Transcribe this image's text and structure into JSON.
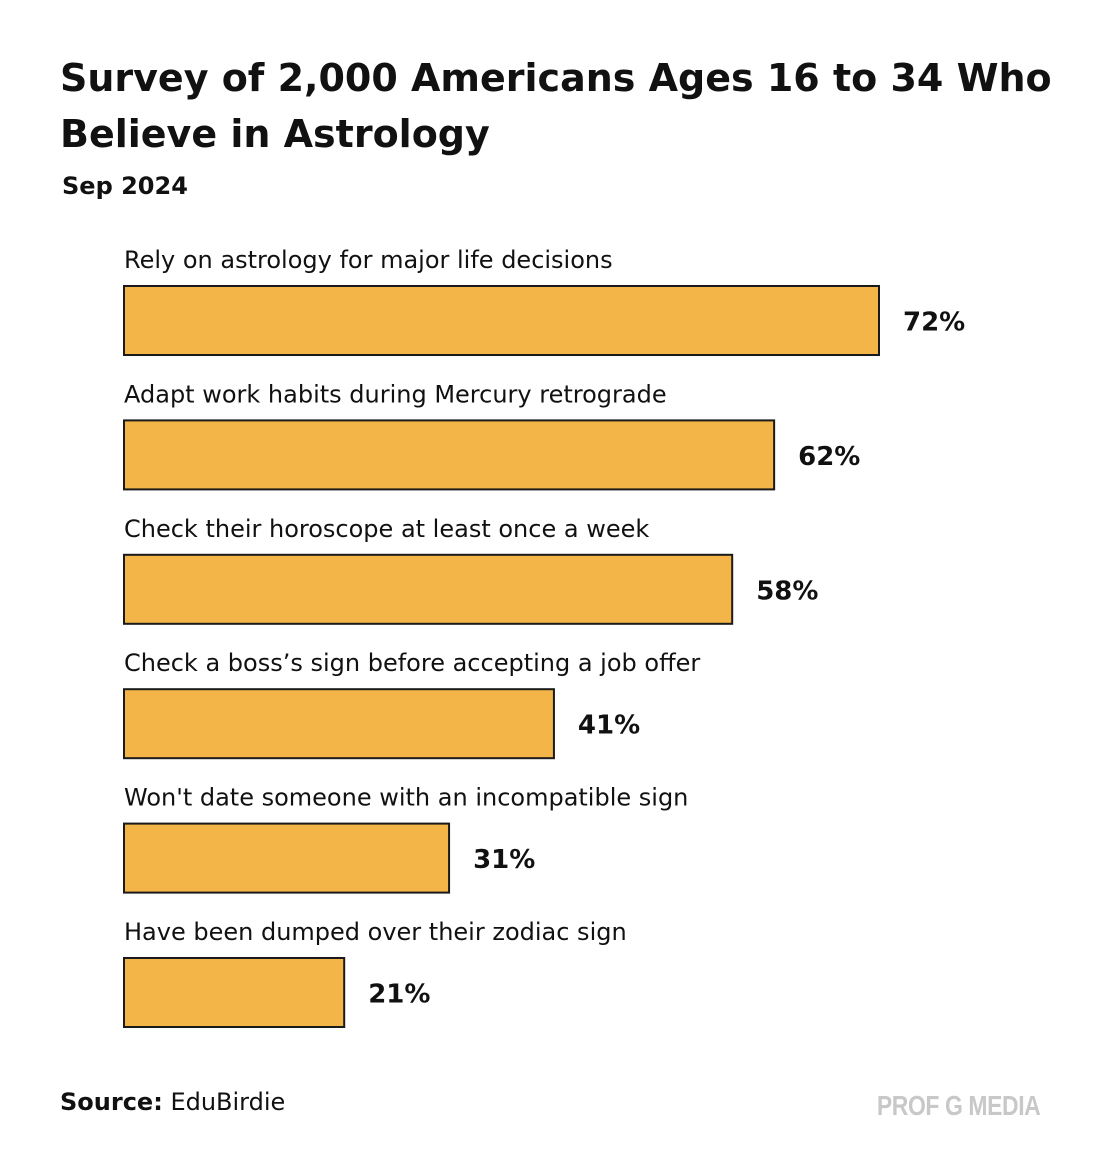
{
  "header": {
    "title": "Survey of 2,000 Americans Ages 16 to 34 Who Believe in Astrology",
    "subtitle": "Sep 2024"
  },
  "footer": {
    "source_label": "Source:",
    "source_value": "EduBirdie",
    "brand": "PROF G MEDIA"
  },
  "colors": {
    "bar_fill": "#F3B547",
    "bar_stroke": "#1a1a1a"
  },
  "chart_data": {
    "type": "bar",
    "orientation": "horizontal",
    "title": "Survey of 2,000 Americans Ages 16 to 34 Who Believe in Astrology",
    "subtitle": "Sep 2024",
    "categories": [
      "Rely on astrology for major life decisions",
      "Adapt work habits during Mercury retrograde",
      "Check their horoscope at least once a week",
      "Check a boss’s sign before accepting a job offer",
      "Won't date someone with an incompatible sign",
      "Have been dumped over their zodiac sign"
    ],
    "values": [
      72,
      62,
      58,
      41,
      31,
      21
    ],
    "value_labels": [
      "72%",
      "62%",
      "58%",
      "41%",
      "31%",
      "21%"
    ],
    "unit": "%",
    "xlim": [
      0,
      100
    ],
    "grid": false,
    "legend": "none"
  }
}
